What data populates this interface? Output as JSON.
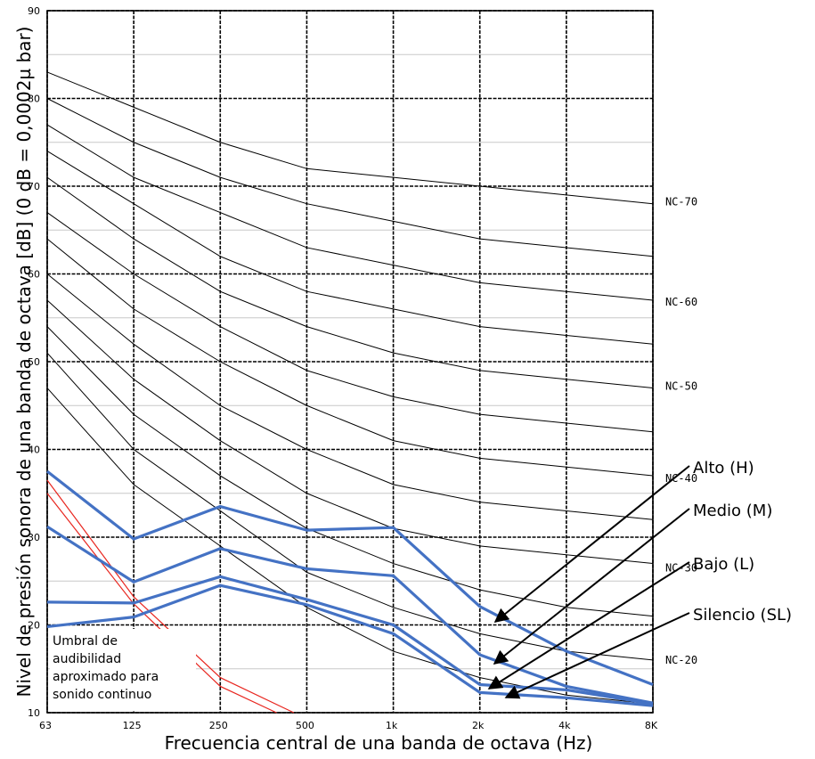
{
  "chart_data": {
    "type": "line",
    "xlabel": "Frecuencia central de una banda de octava (Hz)",
    "ylabel": "Nivel de presión sonora de una banda de octava [dB] (0 dB = 0,0002µ bar)",
    "x": [
      "63",
      "125",
      "250",
      "500",
      "1k",
      "2k",
      "4k",
      "8K"
    ],
    "ylim": [
      10,
      90
    ],
    "yticks": [
      10,
      20,
      30,
      40,
      50,
      60,
      70,
      80,
      90
    ],
    "grid": true,
    "nc_curves": [
      {
        "name": "NC-70",
        "values": [
          83,
          79,
          75,
          72,
          71,
          70,
          69,
          68
        ]
      },
      {
        "name": "",
        "values": [
          80,
          75,
          71,
          68,
          66,
          64,
          63,
          62
        ]
      },
      {
        "name": "",
        "values": [
          77,
          71,
          67,
          63,
          61,
          59,
          58,
          57
        ]
      },
      {
        "name": "NC-60",
        "values": [
          74,
          68,
          62,
          58,
          56,
          54,
          53,
          52
        ]
      },
      {
        "name": "",
        "values": [
          71,
          64,
          58,
          54,
          51,
          49,
          48,
          47
        ]
      },
      {
        "name": "NC-50",
        "values": [
          67,
          60,
          54,
          49,
          46,
          44,
          43,
          42
        ]
      },
      {
        "name": "",
        "values": [
          64,
          56,
          50,
          45,
          41,
          39,
          38,
          37
        ]
      },
      {
        "name": "NC-40",
        "values": [
          60,
          52,
          45,
          40,
          36,
          34,
          33,
          32
        ]
      },
      {
        "name": "",
        "values": [
          57,
          48,
          41,
          35,
          31,
          29,
          28,
          27
        ]
      },
      {
        "name": "NC-30",
        "values": [
          54,
          44,
          37,
          31,
          27,
          24,
          22,
          21
        ]
      },
      {
        "name": "",
        "values": [
          51,
          40,
          33,
          26,
          22,
          19,
          17,
          16
        ]
      },
      {
        "name": "NC-20",
        "values": [
          47,
          36,
          29,
          22,
          17,
          14,
          12,
          11
        ]
      }
    ],
    "nc_label_values": [
      {
        "name": "NC-70",
        "y": 68.2
      },
      {
        "name": "NC-60",
        "y": 56.8
      },
      {
        "name": "NC-50",
        "y": 47.2
      },
      {
        "name": "NC-40",
        "y": 36.7
      },
      {
        "name": "NC-30",
        "y": 26.5
      },
      {
        "name": "NC-20",
        "y": 16.0
      }
    ],
    "series": [
      {
        "name": "Alto (H)",
        "values": [
          37.5,
          29.8,
          33.5,
          30.8,
          31.1,
          22.1,
          17.0,
          13.2
        ]
      },
      {
        "name": "Medio (M)",
        "values": [
          31.2,
          24.9,
          28.7,
          26.4,
          25.6,
          16.6,
          13.0,
          11.1
        ]
      },
      {
        "name": "Bajo (L)",
        "values": [
          22.6,
          22.5,
          25.5,
          22.9,
          20.0,
          13.2,
          12.6,
          11.0
        ]
      },
      {
        "name": "Silencio (SL)",
        "values": [
          19.8,
          20.9,
          24.5,
          22.3,
          19.0,
          12.3,
          11.7,
          10.8
        ]
      }
    ],
    "threshold": {
      "label_lines": [
        "Umbral de",
        "audibilidad",
        "aproximado para",
        "sonido continuo"
      ],
      "curve_a": [
        [
          0,
          35
        ],
        [
          1,
          22.4
        ],
        [
          2,
          13
        ],
        [
          2.65,
          10
        ]
      ],
      "curve_b": [
        [
          0,
          36.5
        ],
        [
          1,
          23.2
        ],
        [
          2,
          14
        ],
        [
          2.85,
          10
        ]
      ]
    },
    "colors": {
      "series": "#4472c4",
      "threshold": "#e8261f",
      "nc": "#000000",
      "grid_major": "#000000",
      "grid_minor": "#c8c8c8"
    }
  }
}
